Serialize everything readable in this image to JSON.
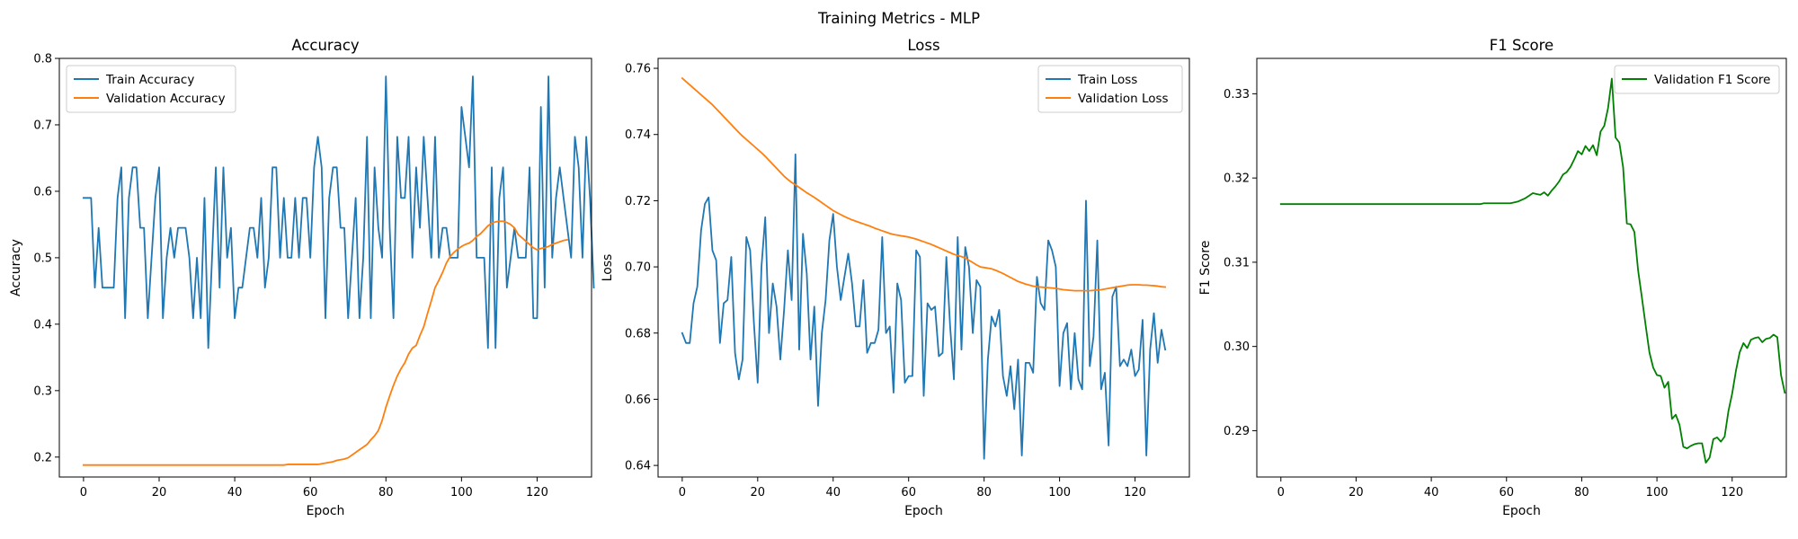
{
  "figure": {
    "suptitle": "Training Metrics - MLP"
  },
  "chart_data": [
    {
      "type": "line",
      "title": "Accuracy",
      "xlabel": "Epoch",
      "ylabel": "Accuracy",
      "xlim": [
        -6.4,
        134.4
      ],
      "ylim": [
        0.17,
        0.8
      ],
      "xticks": [
        0,
        20,
        40,
        60,
        80,
        100,
        120
      ],
      "yticks": [
        0.2,
        0.3,
        0.4,
        0.5,
        0.6,
        0.7,
        0.8
      ],
      "ytick_labels": [
        "0.2",
        "0.3",
        "0.4",
        "0.5",
        "0.6",
        "0.7",
        "0.8"
      ],
      "legend_position": "upper-left",
      "series": [
        {
          "name": "Train Accuracy",
          "color": "#1f77b4",
          "y": [
            0.59,
            0.59,
            0.59,
            0.455,
            0.545,
            0.455,
            0.455,
            0.455,
            0.455,
            0.59,
            0.636,
            0.409,
            0.59,
            0.636,
            0.636,
            0.545,
            0.545,
            0.409,
            0.5,
            0.59,
            0.636,
            0.409,
            0.5,
            0.545,
            0.5,
            0.545,
            0.545,
            0.545,
            0.5,
            0.409,
            0.5,
            0.409,
            0.59,
            0.364,
            0.5,
            0.636,
            0.455,
            0.636,
            0.5,
            0.545,
            0.409,
            0.455,
            0.455,
            0.5,
            0.545,
            0.545,
            0.5,
            0.59,
            0.455,
            0.5,
            0.636,
            0.636,
            0.5,
            0.59,
            0.5,
            0.5,
            0.59,
            0.5,
            0.59,
            0.59,
            0.5,
            0.636,
            0.682,
            0.636,
            0.409,
            0.59,
            0.636,
            0.636,
            0.545,
            0.545,
            0.409,
            0.5,
            0.59,
            0.409,
            0.5,
            0.682,
            0.409,
            0.636,
            0.545,
            0.5,
            0.773,
            0.545,
            0.409,
            0.682,
            0.59,
            0.59,
            0.682,
            0.5,
            0.636,
            0.545,
            0.682,
            0.59,
            0.5,
            0.682,
            0.5,
            0.545,
            0.545,
            0.5,
            0.5,
            0.5,
            0.727,
            0.682,
            0.636,
            0.773,
            0.5,
            0.5,
            0.5,
            0.364,
            0.636,
            0.364,
            0.59,
            0.636,
            0.455,
            0.5,
            0.545,
            0.5,
            0.5,
            0.5,
            0.636,
            0.409,
            0.409,
            0.727,
            0.455,
            0.773,
            0.5,
            0.59,
            0.636,
            0.59,
            0.545,
            0.5,
            0.682,
            0.636,
            0.5,
            0.682,
            0.59,
            0.455
          ]
        },
        {
          "name": "Validation Accuracy",
          "color": "#ff7f0e",
          "y": [
            0.188,
            0.188,
            0.188,
            0.188,
            0.188,
            0.188,
            0.188,
            0.188,
            0.188,
            0.188,
            0.188,
            0.188,
            0.188,
            0.188,
            0.188,
            0.188,
            0.188,
            0.188,
            0.188,
            0.188,
            0.188,
            0.188,
            0.188,
            0.188,
            0.188,
            0.188,
            0.188,
            0.188,
            0.188,
            0.188,
            0.188,
            0.188,
            0.188,
            0.188,
            0.188,
            0.188,
            0.188,
            0.188,
            0.188,
            0.188,
            0.188,
            0.188,
            0.188,
            0.188,
            0.188,
            0.188,
            0.188,
            0.188,
            0.188,
            0.188,
            0.188,
            0.188,
            0.188,
            0.188,
            0.189,
            0.189,
            0.189,
            0.189,
            0.189,
            0.189,
            0.189,
            0.189,
            0.189,
            0.19,
            0.191,
            0.192,
            0.193,
            0.195,
            0.196,
            0.197,
            0.199,
            0.203,
            0.207,
            0.211,
            0.215,
            0.219,
            0.226,
            0.232,
            0.24,
            0.255,
            0.275,
            0.292,
            0.308,
            0.322,
            0.333,
            0.342,
            0.355,
            0.364,
            0.368,
            0.383,
            0.396,
            0.416,
            0.435,
            0.455,
            0.466,
            0.478,
            0.492,
            0.502,
            0.508,
            0.513,
            0.517,
            0.52,
            0.522,
            0.526,
            0.532,
            0.536,
            0.542,
            0.548,
            0.552,
            0.554,
            0.555,
            0.555,
            0.553,
            0.55,
            0.545,
            0.535,
            0.53,
            0.525,
            0.52,
            0.515,
            0.512,
            0.514,
            0.515,
            0.517,
            0.52,
            0.522,
            0.524,
            0.526,
            0.527
          ]
        }
      ]
    },
    {
      "type": "line",
      "title": "Loss",
      "xlabel": "Epoch",
      "ylabel": "Loss",
      "xlim": [
        -6.4,
        134.4
      ],
      "ylim": [
        0.6365,
        0.763
      ],
      "xticks": [
        0,
        20,
        40,
        60,
        80,
        100,
        120
      ],
      "yticks": [
        0.64,
        0.66,
        0.68,
        0.7,
        0.72,
        0.74,
        0.76
      ],
      "ytick_labels": [
        "0.64",
        "0.66",
        "0.68",
        "0.70",
        "0.72",
        "0.74",
        "0.76"
      ],
      "legend_position": "upper-right",
      "series": [
        {
          "name": "Train Loss",
          "color": "#1f77b4",
          "y": [
            0.68,
            0.677,
            0.677,
            0.689,
            0.694,
            0.711,
            0.719,
            0.721,
            0.705,
            0.702,
            0.677,
            0.689,
            0.69,
            0.703,
            0.674,
            0.666,
            0.672,
            0.709,
            0.705,
            0.683,
            0.665,
            0.7,
            0.715,
            0.68,
            0.695,
            0.688,
            0.672,
            0.687,
            0.705,
            0.69,
            0.734,
            0.675,
            0.71,
            0.698,
            0.672,
            0.688,
            0.658,
            0.68,
            0.69,
            0.708,
            0.716,
            0.7,
            0.69,
            0.697,
            0.704,
            0.695,
            0.682,
            0.682,
            0.696,
            0.674,
            0.677,
            0.677,
            0.681,
            0.709,
            0.68,
            0.682,
            0.662,
            0.695,
            0.69,
            0.665,
            0.667,
            0.667,
            0.705,
            0.703,
            0.661,
            0.689,
            0.687,
            0.688,
            0.673,
            0.674,
            0.703,
            0.682,
            0.666,
            0.709,
            0.675,
            0.706,
            0.7,
            0.68,
            0.696,
            0.694,
            0.642,
            0.672,
            0.685,
            0.682,
            0.687,
            0.667,
            0.661,
            0.67,
            0.657,
            0.672,
            0.643,
            0.671,
            0.671,
            0.668,
            0.697,
            0.689,
            0.687,
            0.708,
            0.705,
            0.7,
            0.664,
            0.68,
            0.683,
            0.663,
            0.68,
            0.666,
            0.663,
            0.72,
            0.67,
            0.679,
            0.708,
            0.663,
            0.668,
            0.646,
            0.691,
            0.694,
            0.67,
            0.672,
            0.67,
            0.675,
            0.667,
            0.669,
            0.684,
            0.643,
            0.675,
            0.686,
            0.671,
            0.681,
            0.675
          ]
        },
        {
          "name": "Validation Loss",
          "color": "#ff7f0e",
          "y": [
            0.757,
            0.756,
            0.755,
            0.754,
            0.753,
            0.752,
            0.751,
            0.75,
            0.749,
            0.7478,
            0.7466,
            0.7454,
            0.7442,
            0.743,
            0.7418,
            0.7406,
            0.7395,
            0.7385,
            0.7375,
            0.7365,
            0.7355,
            0.7345,
            0.7334,
            0.7322,
            0.731,
            0.7298,
            0.7286,
            0.7274,
            0.7264,
            0.7255,
            0.7248,
            0.724,
            0.7232,
            0.7224,
            0.7217,
            0.721,
            0.7202,
            0.7194,
            0.7186,
            0.7178,
            0.717,
            0.7164,
            0.7158,
            0.7152,
            0.7147,
            0.7142,
            0.7138,
            0.7134,
            0.713,
            0.7126,
            0.7122,
            0.7117,
            0.7113,
            0.7109,
            0.7105,
            0.7101,
            0.7098,
            0.7096,
            0.7094,
            0.7092,
            0.709,
            0.7087,
            0.7084,
            0.708,
            0.7076,
            0.7072,
            0.7068,
            0.7063,
            0.7058,
            0.7053,
            0.7048,
            0.7043,
            0.7038,
            0.7034,
            0.7031,
            0.7027,
            0.702,
            0.7013,
            0.7006,
            0.7,
            0.6998,
            0.6996,
            0.6994,
            0.699,
            0.6985,
            0.698,
            0.6974,
            0.6968,
            0.6962,
            0.6956,
            0.6952,
            0.6948,
            0.6945,
            0.6942,
            0.694,
            0.6939,
            0.6938,
            0.6937,
            0.6936,
            0.6935,
            0.6933,
            0.6931,
            0.693,
            0.6929,
            0.6928,
            0.6928,
            0.6928,
            0.6928,
            0.6928,
            0.6929,
            0.693,
            0.6931,
            0.6933,
            0.6935,
            0.6937,
            0.6939,
            0.6941,
            0.6943,
            0.6945,
            0.6946,
            0.6946,
            0.6946,
            0.6945,
            0.6945,
            0.6944,
            0.6943,
            0.6942,
            0.694,
            0.6939
          ]
        }
      ]
    },
    {
      "type": "line",
      "title": "F1 Score",
      "xlabel": "Epoch",
      "ylabel": "F1 Score",
      "xlim": [
        -6.4,
        134.4
      ],
      "ylim": [
        0.2845,
        0.3342
      ],
      "xticks": [
        0,
        20,
        40,
        60,
        80,
        100,
        120
      ],
      "yticks": [
        0.29,
        0.3,
        0.31,
        0.32,
        0.33
      ],
      "ytick_labels": [
        "0.29",
        "0.30",
        "0.31",
        "0.32",
        "0.33"
      ],
      "legend_position": "upper-right",
      "series": [
        {
          "name": "Validation F1 Score",
          "color": "#008000",
          "y": [
            0.3169,
            0.3169,
            0.3169,
            0.3169,
            0.3169,
            0.3169,
            0.3169,
            0.3169,
            0.3169,
            0.3169,
            0.3169,
            0.3169,
            0.3169,
            0.3169,
            0.3169,
            0.3169,
            0.3169,
            0.3169,
            0.3169,
            0.3169,
            0.3169,
            0.3169,
            0.3169,
            0.3169,
            0.3169,
            0.3169,
            0.3169,
            0.3169,
            0.3169,
            0.3169,
            0.3169,
            0.3169,
            0.3169,
            0.3169,
            0.3169,
            0.3169,
            0.3169,
            0.3169,
            0.3169,
            0.3169,
            0.3169,
            0.3169,
            0.3169,
            0.3169,
            0.3169,
            0.3169,
            0.3169,
            0.3169,
            0.3169,
            0.3169,
            0.3169,
            0.3169,
            0.3169,
            0.3169,
            0.317,
            0.317,
            0.317,
            0.317,
            0.317,
            0.317,
            0.317,
            0.317,
            0.3171,
            0.3172,
            0.3174,
            0.3176,
            0.3179,
            0.3182,
            0.3181,
            0.318,
            0.3183,
            0.3179,
            0.3185,
            0.319,
            0.3196,
            0.3204,
            0.3207,
            0.3213,
            0.3222,
            0.3232,
            0.3228,
            0.3238,
            0.3232,
            0.3239,
            0.3227,
            0.3255,
            0.3262,
            0.3283,
            0.3318,
            0.3248,
            0.3242,
            0.3213,
            0.3146,
            0.3145,
            0.3136,
            0.309,
            0.3058,
            0.3025,
            0.2993,
            0.2975,
            0.2966,
            0.2965,
            0.2951,
            0.2958,
            0.2914,
            0.2919,
            0.2907,
            0.2881,
            0.2879,
            0.2882,
            0.2884,
            0.2885,
            0.2885,
            0.2862,
            0.2868,
            0.289,
            0.2892,
            0.2887,
            0.2893,
            0.2923,
            0.2944,
            0.2971,
            0.2993,
            0.3004,
            0.2998,
            0.3008,
            0.301,
            0.3011,
            0.3005,
            0.3009,
            0.301,
            0.3014,
            0.3011,
            0.2966,
            0.2945
          ]
        }
      ]
    }
  ]
}
